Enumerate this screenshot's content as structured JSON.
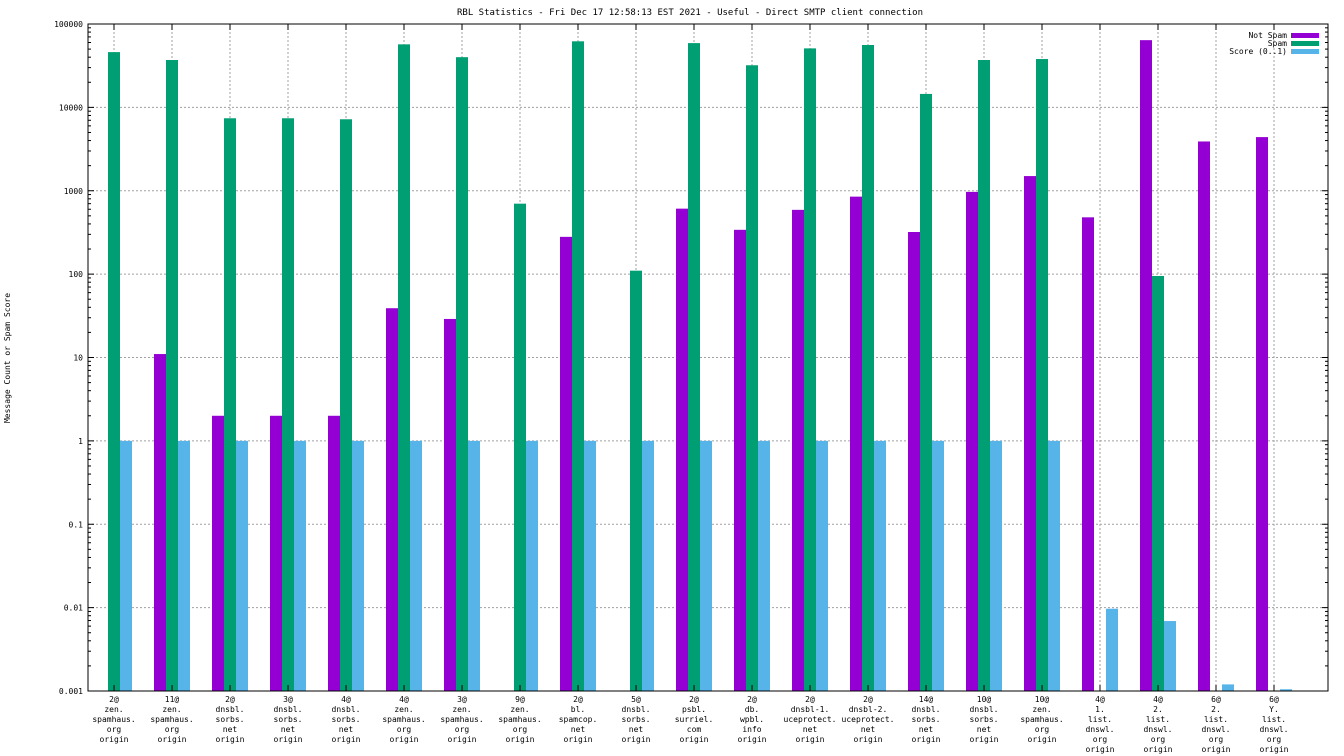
{
  "chart_data": {
    "type": "bar",
    "title": "RBL Statistics - Fri Dec 17 12:58:13 EST 2021 - Useful - Direct SMTP client connection",
    "xlabel": "",
    "ylabel": "Message Count or Spam Score",
    "yscale": "log",
    "ylim": [
      0.001,
      100000
    ],
    "yticks": [
      "0.001",
      "0.01",
      "0.1",
      "1",
      "10",
      "100",
      "1000",
      "10000",
      "100000"
    ],
    "grid": true,
    "legend_position": "top-right",
    "categories": [
      [
        "2@",
        "zen.",
        "spamhaus.",
        "org",
        "origin"
      ],
      [
        "11@",
        "zen.",
        "spamhaus.",
        "org",
        "origin"
      ],
      [
        "2@",
        "dnsbl.",
        "sorbs.",
        "net",
        "origin"
      ],
      [
        "3@",
        "dnsbl.",
        "sorbs.",
        "net",
        "origin"
      ],
      [
        "4@",
        "dnsbl.",
        "sorbs.",
        "net",
        "origin"
      ],
      [
        "4@",
        "zen.",
        "spamhaus.",
        "org",
        "origin"
      ],
      [
        "3@",
        "zen.",
        "spamhaus.",
        "org",
        "origin"
      ],
      [
        "9@",
        "zen.",
        "spamhaus.",
        "org",
        "origin"
      ],
      [
        "2@",
        "bl.",
        "spamcop.",
        "net",
        "origin"
      ],
      [
        "5@",
        "dnsbl.",
        "sorbs.",
        "net",
        "origin"
      ],
      [
        "2@",
        "psbl.",
        "surriel.",
        "com",
        "origin"
      ],
      [
        "2@",
        "db.",
        "wpbl.",
        "info",
        "origin"
      ],
      [
        "2@",
        "dnsbl-1.",
        "uceprotect.",
        "net",
        "origin"
      ],
      [
        "2@",
        "dnsbl-2.",
        "uceprotect.",
        "net",
        "origin"
      ],
      [
        "14@",
        "dnsbl.",
        "sorbs.",
        "net",
        "origin"
      ],
      [
        "10@",
        "dnsbl.",
        "sorbs.",
        "net",
        "origin"
      ],
      [
        "10@",
        "zen.",
        "spamhaus.",
        "org",
        "origin"
      ],
      [
        "4@",
        "1.",
        "list.",
        "dnswl.",
        "org",
        "origin"
      ],
      [
        "4@",
        "2.",
        "list.",
        "dnswl.",
        "org",
        "origin"
      ],
      [
        "6@",
        "2.",
        "list.",
        "dnswl.",
        "org",
        "origin"
      ],
      [
        "6@",
        "Y.",
        "list.",
        "dnswl.",
        "org",
        "origin"
      ]
    ],
    "series": [
      {
        "name": "Not Spam",
        "color": "#9400d3",
        "values": [
          null,
          11,
          2,
          2,
          2,
          39,
          29,
          null,
          280,
          null,
          610,
          340,
          590,
          850,
          320,
          970,
          1500,
          480,
          64000,
          3900,
          4400
        ]
      },
      {
        "name": "Spam",
        "color": "#009e73",
        "values": [
          46000,
          37000,
          7400,
          7400,
          7200,
          57000,
          40000,
          700,
          62000,
          110,
          59000,
          32000,
          51000,
          56000,
          14500,
          37000,
          38000,
          null,
          95,
          null,
          null
        ]
      },
      {
        "name": "Score (0..1)",
        "color": "#56b4e9",
        "values": [
          1,
          1,
          1,
          1,
          1,
          1,
          1,
          1,
          1,
          1,
          1,
          1,
          1,
          1,
          1,
          1,
          1,
          0.0097,
          0.0069,
          0.0012,
          0.00105
        ]
      }
    ]
  }
}
